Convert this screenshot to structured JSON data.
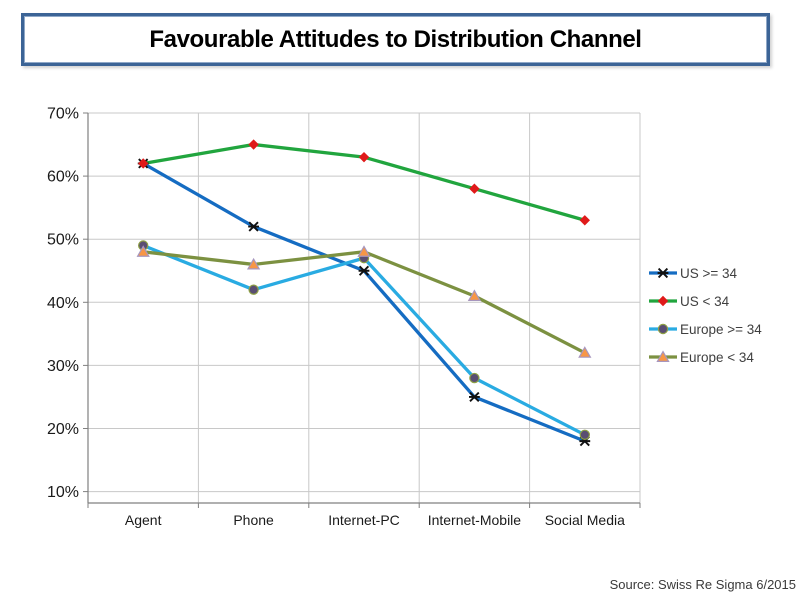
{
  "title": "Favourable Attitudes to Distribution Channel",
  "source_note": "Source: Swiss Re Sigma 6/2015",
  "colors": {
    "title_border": "#3C6496",
    "gridline": "#C8C8C8",
    "axis_line": "#808080",
    "tick_label": "#1A1A1A",
    "legend_text": "#3F3F3F",
    "source_text": "#3A3A3A"
  },
  "chart_data": {
    "type": "line",
    "title": "Favourable Attitudes to Distribution Channel",
    "categories": [
      "Agent",
      "Phone",
      "Internet-PC",
      "Internet-Mobile",
      "Social Media"
    ],
    "series": [
      {
        "name": "US >= 34",
        "values": [
          62,
          52,
          45,
          25,
          18
        ],
        "line_color": "#156CC2",
        "marker": "x-star",
        "marker_color": "#111111",
        "marker_edge": "#111111"
      },
      {
        "name": "US < 34",
        "values": [
          62,
          65,
          63,
          58,
          53
        ],
        "line_color": "#21A53E",
        "marker": "diamond",
        "marker_color": "#E01A1A",
        "marker_edge": "#E01A1A"
      },
      {
        "name": "Europe >= 34",
        "values": [
          49,
          42,
          47,
          28,
          19
        ],
        "line_color": "#29ABE2",
        "marker": "circle",
        "marker_color": "#5A4E72",
        "marker_edge": "#8EA045"
      },
      {
        "name": "Europe < 34",
        "values": [
          48,
          46,
          48,
          41,
          32
        ],
        "line_color": "#7C9141",
        "marker": "triangle",
        "marker_color": "#F79646",
        "marker_edge": "#A796BE"
      }
    ],
    "y_ticks": [
      {
        "label": "70%",
        "value": 70
      },
      {
        "label": "60%",
        "value": 60
      },
      {
        "label": "50%",
        "value": 50
      },
      {
        "label": "40%",
        "value": 40
      },
      {
        "label": "30%",
        "value": 30
      },
      {
        "label": "20%",
        "value": 20
      },
      {
        "label": "10%",
        "value": 10
      }
    ],
    "ylim": [
      10,
      70
    ],
    "xlabel": "",
    "ylabel": "",
    "unit": "%",
    "grid": true,
    "legend_position": "right"
  }
}
